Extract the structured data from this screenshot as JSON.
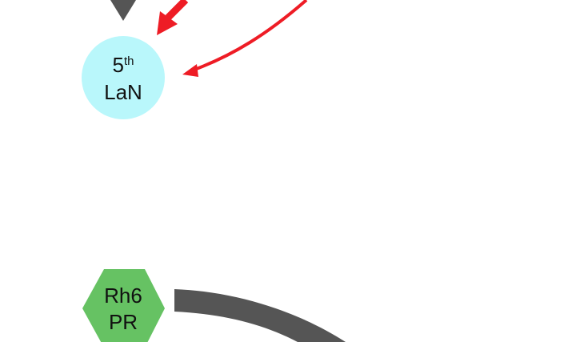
{
  "colors": {
    "lan_fill": "#b9f7fb",
    "rh6_fill": "#66c263",
    "gray_edge": "#555555",
    "red_edge": "#ee1c25",
    "text": "#111111"
  },
  "nodes": {
    "lan": {
      "number": "5",
      "superscript": "th",
      "name": "LaN"
    },
    "rh6": {
      "line1": "Rh6",
      "line2": "PR"
    }
  }
}
